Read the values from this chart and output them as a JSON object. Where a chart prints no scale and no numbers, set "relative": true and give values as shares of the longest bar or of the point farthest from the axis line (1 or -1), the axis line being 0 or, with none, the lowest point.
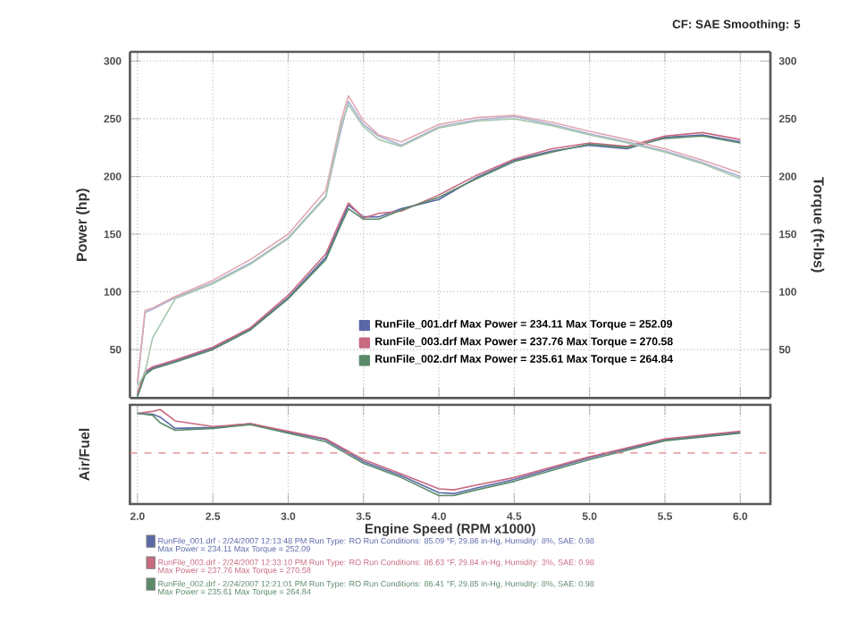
{
  "chart_data": [
    {
      "type": "line",
      "ylabel": "Power (hp)",
      "y2label": "Torque (ft-lbs)",
      "xlim": [
        1.95,
        6.2
      ],
      "xticks": [
        2,
        2.5,
        3,
        3.5,
        4,
        4.5,
        5,
        5.5,
        6
      ],
      "ylim": [
        8,
        308
      ],
      "yticks": [
        50,
        100,
        150,
        200,
        250,
        300
      ],
      "y2lim": [
        8,
        308
      ],
      "y2ticks": [
        50,
        100,
        150,
        200,
        250,
        300
      ],
      "tick_labels": "y",
      "grid": true,
      "legend": "bottom right",
      "x": [
        2.0,
        2.05,
        2.1,
        2.25,
        2.5,
        2.75,
        3.0,
        3.25,
        3.35,
        3.4,
        3.5,
        3.6,
        3.75,
        4.0,
        4.25,
        4.5,
        4.75,
        5.0,
        5.25,
        5.5,
        5.75,
        6.0
      ],
      "series": [
        {
          "name": "RunFile_001.drf Max Power = 234.11     Max Torque = 252.09",
          "color": "#5a68a8",
          "values": [
            10,
            30,
            34,
            40,
            51,
            68,
            95,
            130,
            160,
            175,
            165,
            165,
            172,
            180,
            199,
            214,
            222,
            227,
            224,
            234,
            236,
            230
          ]
        },
        {
          "name": "RunFile_003.drf Max Power = 237.76     Max Torque = 270.58",
          "color": "#c86a80",
          "values": [
            12,
            31,
            35,
            41,
            52,
            69,
            97,
            133,
            163,
            177,
            164,
            168,
            170,
            184,
            201,
            215,
            224,
            229,
            226,
            235,
            238,
            232
          ]
        },
        {
          "name": "RunFile_002.drf Max Power = 235.61     Max Torque = 264.84",
          "color": "#5a8a6a",
          "values": [
            9,
            28,
            33,
            39,
            50,
            67,
            94,
            128,
            158,
            172,
            163,
            163,
            171,
            182,
            198,
            213,
            221,
            228,
            225,
            233,
            235,
            229
          ]
        },
        {
          "axis": "y2",
          "color": "#a8b0d0",
          "values": [
            20,
            82,
            85,
            95,
            108,
            125,
            147,
            183,
            240,
            265,
            245,
            235,
            227,
            243,
            249,
            252,
            245,
            237,
            230,
            222,
            212,
            200
          ]
        },
        {
          "axis": "y2",
          "color": "#e0a8b4",
          "values": [
            22,
            84,
            86,
            96,
            110,
            128,
            150,
            188,
            248,
            270,
            248,
            236,
            230,
            245,
            251,
            253,
            247,
            239,
            232,
            224,
            214,
            203
          ]
        },
        {
          "axis": "y2",
          "color": "#a8c8b0",
          "values": [
            18,
            30,
            60,
            94,
            107,
            124,
            146,
            182,
            245,
            262,
            243,
            232,
            226,
            242,
            248,
            250,
            244,
            236,
            229,
            221,
            211,
            198
          ]
        }
      ],
      "annotations": [
        "CF: SAE  Smoothing: 5"
      ]
    },
    {
      "type": "line",
      "relative": true,
      "ylabel": "Air/Fuel",
      "xlabel": "Engine Speed (RPM x1000)",
      "xlim": [
        1.95,
        6.2
      ],
      "xticks": [
        {
          "value": 2,
          "label": "2.0"
        },
        {
          "value": 2.5,
          "label": "2.5"
        },
        {
          "value": 3,
          "label": "3.0"
        },
        {
          "value": 3.5,
          "label": "3.5"
        },
        {
          "value": 4,
          "label": "4.0"
        },
        {
          "value": 4.5,
          "label": "4.5"
        },
        {
          "value": 5,
          "label": "5.0"
        },
        {
          "value": 5.5,
          "label": "5.5"
        },
        {
          "value": 6,
          "label": "6.0"
        }
      ],
      "tick_labels": "x",
      "grid": true,
      "x": [
        2.0,
        2.1,
        2.15,
        2.25,
        2.5,
        2.75,
        3.0,
        3.25,
        3.5,
        3.75,
        4.0,
        4.1,
        4.25,
        4.5,
        5.0,
        5.5,
        6.0
      ],
      "series": [
        {
          "color": "#5a68a8",
          "values": [
            0.96,
            0.95,
            0.92,
            0.8,
            0.81,
            0.85,
            0.76,
            0.68,
            0.45,
            0.3,
            0.12,
            0.11,
            0.17,
            0.26,
            0.49,
            0.68,
            0.76
          ]
        },
        {
          "color": "#c86a80",
          "values": [
            0.96,
            0.98,
            1.0,
            0.88,
            0.82,
            0.85,
            0.77,
            0.69,
            0.47,
            0.32,
            0.16,
            0.15,
            0.2,
            0.28,
            0.5,
            0.69,
            0.77
          ]
        },
        {
          "color": "#5a8a6a",
          "values": [
            0.96,
            0.94,
            0.86,
            0.78,
            0.8,
            0.84,
            0.75,
            0.66,
            0.43,
            0.28,
            0.09,
            0.09,
            0.15,
            0.24,
            0.47,
            0.67,
            0.75
          ]
        }
      ],
      "ref_lines": [
        {
          "axis": "y",
          "value": 0.54,
          "color": "#e08080",
          "line_style": "dashed"
        }
      ],
      "annotations": [
        "RunFile_001.drf - 2/24/2007 12:13:48 PM  Run Type: RO  Run Conditions: 85.09 °F, 29.86 in-Hg,  Humidity: 8%,  SAE: 0.98",
        "Max Power = 234.11  Max Torque = 252.09",
        "RunFile_003.drf - 2/24/2007 12:33:10 PM  Run Type: RO  Run Conditions: 86.63 °F, 29.84 in-Hg,  Humidity: 3%,  SAE: 0.98",
        "Max Power = 237.76  Max Torque = 270.58",
        "RunFile_002.drf - 2/24/2007 12:21:01 PM  Run Type: RO  Run Conditions: 86.41 °F, 29.85 in-Hg,  Humidity: 8%,  SAE: 0.98",
        "Max Power = 235.61  Max Torque = 264.84"
      ]
    }
  ]
}
